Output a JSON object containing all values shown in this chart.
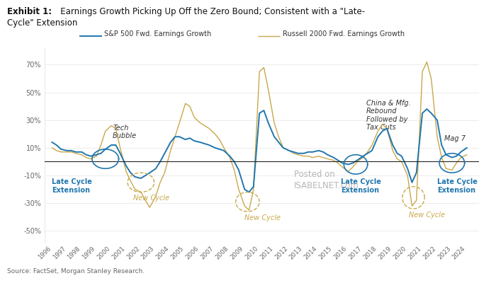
{
  "title_bold": "Exhibit 1:",
  "title_rest": "    Earnings Growth Picking Up Off the Zero Bound; Consistent with a \"Late-\nCycle\" Extension",
  "source": "Source: FactSet, Morgan Stanley Research.",
  "legend1": "S&P 500 Fwd. Earnings Growth",
  "legend2": "Russell 2000 Fwd. Earnings Growth",
  "sp500_color": "#2176AE",
  "russell_color": "#C8A84B",
  "yticks": [
    -50,
    -30,
    -10,
    10,
    30,
    50,
    70
  ],
  "ytick_labels": [
    "-50%",
    "-30%",
    "-10%",
    "10%",
    "30%",
    "50%",
    "70%"
  ],
  "sp500_data": [
    [
      1996.0,
      14
    ],
    [
      1996.3,
      12
    ],
    [
      1996.6,
      9
    ],
    [
      1997.0,
      8
    ],
    [
      1997.3,
      8
    ],
    [
      1997.6,
      7
    ],
    [
      1998.0,
      7
    ],
    [
      1998.3,
      5
    ],
    [
      1998.6,
      4
    ],
    [
      1999.0,
      5
    ],
    [
      1999.3,
      6
    ],
    [
      1999.6,
      9
    ],
    [
      2000.0,
      12
    ],
    [
      2000.3,
      12
    ],
    [
      2000.6,
      6
    ],
    [
      2001.0,
      -3
    ],
    [
      2001.3,
      -8
    ],
    [
      2001.6,
      -11
    ],
    [
      2002.0,
      -12
    ],
    [
      2002.3,
      -10
    ],
    [
      2002.6,
      -8
    ],
    [
      2003.0,
      -5
    ],
    [
      2003.3,
      0
    ],
    [
      2003.6,
      6
    ],
    [
      2004.0,
      14
    ],
    [
      2004.3,
      18
    ],
    [
      2004.6,
      18
    ],
    [
      2005.0,
      16
    ],
    [
      2005.3,
      17
    ],
    [
      2005.6,
      15
    ],
    [
      2006.0,
      14
    ],
    [
      2006.3,
      13
    ],
    [
      2006.6,
      12
    ],
    [
      2007.0,
      10
    ],
    [
      2007.3,
      9
    ],
    [
      2007.6,
      8
    ],
    [
      2008.0,
      4
    ],
    [
      2008.3,
      0
    ],
    [
      2008.6,
      -6
    ],
    [
      2009.0,
      -20
    ],
    [
      2009.3,
      -22
    ],
    [
      2009.6,
      -18
    ],
    [
      2010.0,
      35
    ],
    [
      2010.3,
      37
    ],
    [
      2010.6,
      28
    ],
    [
      2011.0,
      18
    ],
    [
      2011.3,
      14
    ],
    [
      2011.6,
      10
    ],
    [
      2012.0,
      8
    ],
    [
      2012.3,
      7
    ],
    [
      2012.6,
      6
    ],
    [
      2013.0,
      6
    ],
    [
      2013.3,
      7
    ],
    [
      2013.6,
      7
    ],
    [
      2014.0,
      8
    ],
    [
      2014.3,
      7
    ],
    [
      2014.6,
      5
    ],
    [
      2015.0,
      3
    ],
    [
      2015.3,
      1
    ],
    [
      2015.6,
      -1
    ],
    [
      2016.0,
      -2
    ],
    [
      2016.3,
      -1
    ],
    [
      2016.6,
      1
    ],
    [
      2017.0,
      4
    ],
    [
      2017.3,
      6
    ],
    [
      2017.6,
      8
    ],
    [
      2018.0,
      18
    ],
    [
      2018.3,
      22
    ],
    [
      2018.6,
      24
    ],
    [
      2019.0,
      12
    ],
    [
      2019.3,
      6
    ],
    [
      2019.6,
      4
    ],
    [
      2020.0,
      -5
    ],
    [
      2020.3,
      -15
    ],
    [
      2020.6,
      -8
    ],
    [
      2021.0,
      35
    ],
    [
      2021.3,
      38
    ],
    [
      2021.6,
      35
    ],
    [
      2022.0,
      30
    ],
    [
      2022.3,
      12
    ],
    [
      2022.6,
      5
    ],
    [
      2023.0,
      3
    ],
    [
      2023.3,
      4
    ],
    [
      2023.6,
      7
    ],
    [
      2024.0,
      10
    ]
  ],
  "russell_data": [
    [
      1996.0,
      10
    ],
    [
      1996.3,
      8
    ],
    [
      1996.6,
      7
    ],
    [
      1997.0,
      7
    ],
    [
      1997.3,
      7
    ],
    [
      1997.6,
      6
    ],
    [
      1998.0,
      5
    ],
    [
      1998.3,
      3
    ],
    [
      1998.6,
      2
    ],
    [
      1999.0,
      4
    ],
    [
      1999.3,
      12
    ],
    [
      1999.6,
      22
    ],
    [
      2000.0,
      26
    ],
    [
      2000.3,
      24
    ],
    [
      2000.6,
      10
    ],
    [
      2001.0,
      -7
    ],
    [
      2001.3,
      -14
    ],
    [
      2001.6,
      -20
    ],
    [
      2002.0,
      -22
    ],
    [
      2002.3,
      -28
    ],
    [
      2002.6,
      -33
    ],
    [
      2003.0,
      -25
    ],
    [
      2003.3,
      -15
    ],
    [
      2003.6,
      -8
    ],
    [
      2004.0,
      8
    ],
    [
      2004.3,
      18
    ],
    [
      2004.6,
      28
    ],
    [
      2005.0,
      42
    ],
    [
      2005.3,
      40
    ],
    [
      2005.6,
      32
    ],
    [
      2006.0,
      28
    ],
    [
      2006.3,
      26
    ],
    [
      2006.6,
      24
    ],
    [
      2007.0,
      20
    ],
    [
      2007.3,
      16
    ],
    [
      2007.6,
      10
    ],
    [
      2008.0,
      3
    ],
    [
      2008.3,
      -6
    ],
    [
      2008.6,
      -20
    ],
    [
      2009.0,
      -32
    ],
    [
      2009.3,
      -35
    ],
    [
      2009.6,
      -20
    ],
    [
      2010.0,
      65
    ],
    [
      2010.3,
      68
    ],
    [
      2010.6,
      52
    ],
    [
      2011.0,
      28
    ],
    [
      2011.3,
      18
    ],
    [
      2011.6,
      10
    ],
    [
      2012.0,
      8
    ],
    [
      2012.3,
      6
    ],
    [
      2012.6,
      5
    ],
    [
      2013.0,
      4
    ],
    [
      2013.3,
      4
    ],
    [
      2013.6,
      3
    ],
    [
      2014.0,
      4
    ],
    [
      2014.3,
      3
    ],
    [
      2014.6,
      2
    ],
    [
      2015.0,
      1
    ],
    [
      2015.3,
      -1
    ],
    [
      2015.6,
      -4
    ],
    [
      2016.0,
      -7
    ],
    [
      2016.3,
      -4
    ],
    [
      2016.6,
      0
    ],
    [
      2017.0,
      3
    ],
    [
      2017.3,
      7
    ],
    [
      2017.6,
      12
    ],
    [
      2018.0,
      22
    ],
    [
      2018.3,
      27
    ],
    [
      2018.6,
      24
    ],
    [
      2019.0,
      8
    ],
    [
      2019.3,
      2
    ],
    [
      2019.6,
      0
    ],
    [
      2020.0,
      -10
    ],
    [
      2020.3,
      -32
    ],
    [
      2020.6,
      -28
    ],
    [
      2021.0,
      65
    ],
    [
      2021.3,
      72
    ],
    [
      2021.6,
      60
    ],
    [
      2022.0,
      18
    ],
    [
      2022.3,
      3
    ],
    [
      2022.6,
      -5
    ],
    [
      2023.0,
      -6
    ],
    [
      2023.3,
      -1
    ],
    [
      2023.6,
      3
    ],
    [
      2024.0,
      5
    ]
  ],
  "background_color": "#FFFFFF",
  "grid_color": "#DDDDDD",
  "axis_label_color": "#666666",
  "zero_line_color": "#222222",
  "sp500_lw": 1.4,
  "russell_lw": 1.0
}
